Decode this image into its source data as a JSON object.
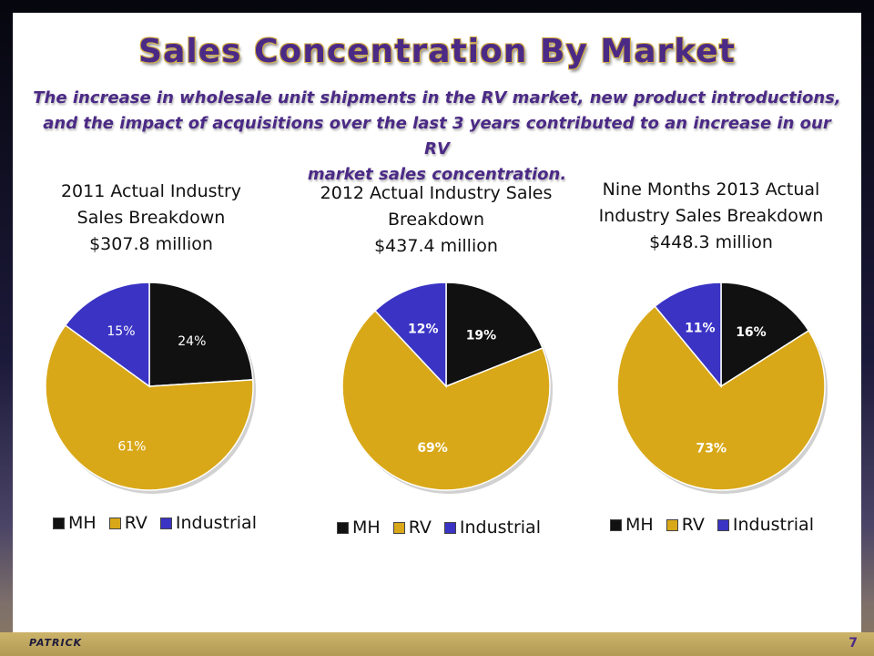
{
  "slide": {
    "title": "Sales Concentration By Market",
    "subtitle_lines": [
      "The increase in wholesale unit shipments in the RV market, new product introductions,",
      "and the impact of acquisitions over the last 3 years contributed to an increase in our RV",
      "market sales concentration."
    ],
    "logo": "PATRICK",
    "page_number": "7"
  },
  "colors": {
    "MH": "#111111",
    "RV": "#d9a819",
    "Industrial": "#3a33c4",
    "title": "#4b2a86"
  },
  "chart_data": [
    {
      "type": "pie",
      "title_lines": [
        "2011 Actual Industry",
        "Sales Breakdown",
        "$307.8 million"
      ],
      "categories": [
        "MH",
        "RV",
        "Industrial"
      ],
      "values": [
        24,
        61,
        15
      ],
      "labels": [
        "24%",
        "61%",
        "15%"
      ],
      "legend": [
        "MH",
        "RV",
        "Industrial"
      ],
      "legend_position": "bottom"
    },
    {
      "type": "pie",
      "title_lines": [
        "2012 Actual Industry Sales",
        "Breakdown",
        "$437.4 million"
      ],
      "categories": [
        "MH",
        "RV",
        "Industrial"
      ],
      "values": [
        19,
        69,
        12
      ],
      "labels": [
        "19%",
        "69%",
        "12%"
      ],
      "legend": [
        "MH",
        "RV",
        "Industrial"
      ],
      "legend_position": "bottom"
    },
    {
      "type": "pie",
      "title_lines": [
        "Nine Months 2013 Actual",
        "Industry Sales Breakdown",
        "$448.3 million"
      ],
      "categories": [
        "MH",
        "RV",
        "Industrial"
      ],
      "values": [
        16,
        73,
        11
      ],
      "labels": [
        "16%",
        "73%",
        "11%"
      ],
      "legend": [
        "MH",
        "RV",
        "Industrial"
      ],
      "legend_position": "bottom"
    }
  ]
}
